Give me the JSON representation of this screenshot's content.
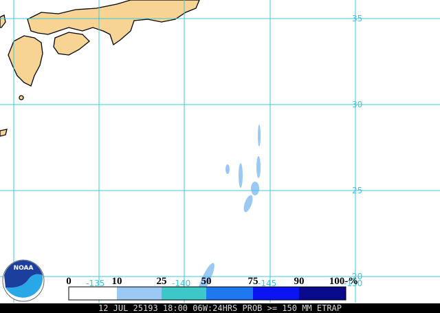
{
  "map": {
    "lat_labels": [
      "35",
      "30",
      "25",
      "20"
    ],
    "lon_labels": [
      "-135",
      "-140",
      "-145",
      "-150"
    ],
    "logo": "NOAA",
    "legend": {
      "ticks": [
        "0",
        "10",
        "25",
        "50",
        "75",
        "90",
        "100-%"
      ]
    },
    "caption": "12 JUL 25193 18:00 06W:24HRS PROB >= 150 MM ETRAP"
  }
}
